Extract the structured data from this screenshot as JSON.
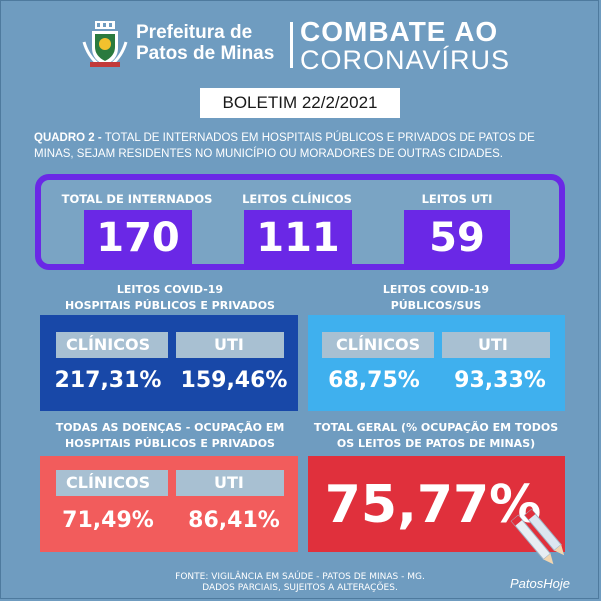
{
  "header": {
    "brand_line1": "Prefeitura de",
    "brand_line2": "Patos de Minas",
    "title_line1": "COMBATE AO",
    "title_line2": "CORONAVÍRUS",
    "crest_icon": "coat-of-arms-icon"
  },
  "boletim": "BOLETIM 22/2/2021",
  "quadro": {
    "prefix": "QUADRO 2 -",
    "text": " TOTAL DE INTERNADOS EM HOSPITAIS PÚBLICOS E PRIVADOS DE PATOS DE MINAS, SEJAM RESIDENTES NO MUNICÍPIO OU MORADORES DE OUTRAS CIDADES."
  },
  "totals": [
    {
      "label": "TOTAL DE INTERNADOS",
      "value": "170"
    },
    {
      "label": "LEITOS CLÍNICOS",
      "value": "111"
    },
    {
      "label": "LEITOS UTI",
      "value": "59"
    }
  ],
  "covid_all": {
    "heading1": "LEITOS COVID-19",
    "heading2": "HOSPITAIS PÚBLICOS E PRIVADOS",
    "col1": "CLÍNICOS",
    "col2": "UTI",
    "val1": "217,31%",
    "val2": "159,46%",
    "color": "#1848a8"
  },
  "covid_sus": {
    "heading1": "LEITOS COVID-19",
    "heading2": "PÚBLICOS/SUS",
    "col1": "CLÍNICOS",
    "col2": "UTI",
    "val1": "68,75%",
    "val2": "93,33%",
    "color": "#3fb0ee"
  },
  "all_diseases": {
    "heading1": "TODAS AS DOENÇAS - OCUPAÇÃO EM",
    "heading2": "HOSPITAIS PÚBLICOS E PRIVADOS",
    "col1": "CLÍNICOS",
    "col2": "UTI",
    "val1": "71,49%",
    "val2": "86,41%",
    "color": "#f25c5c"
  },
  "total_geral": {
    "heading1": "TOTAL GERAL (% OCUPAÇÃO EM TODOS",
    "heading2": "OS LEITOS DE PATOS DE MINAS)",
    "value": "75,77%",
    "color": "#e0303c"
  },
  "footer": {
    "line1": "FONTE: VIGILÂNCIA EM SAÚDE - PATOS DE MINAS - MG.",
    "line2": "DADOS PARCIAIS, SUJEITOS A ALTERAÇÕES."
  },
  "watermark": "PatosHoje",
  "colors": {
    "background": "#6f9cc0",
    "purple": "#6a28e6"
  }
}
